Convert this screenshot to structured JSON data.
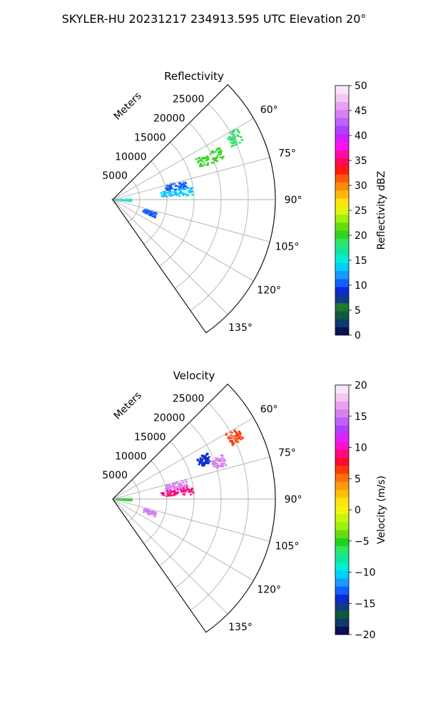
{
  "figure_title": "SKYLER-HU  20231217  234913.595 UTC Elevation 20°",
  "chart_data": [
    {
      "type": "heatmap",
      "projection": "polar-sector",
      "title": "Reflectivity",
      "radial_axis_label": "Meters",
      "radial_ticks": [
        5000,
        10000,
        15000,
        20000,
        25000
      ],
      "radial_tick_labels": [
        "5000",
        "10000",
        "15000",
        "20000",
        "25000"
      ],
      "radial_range": [
        0,
        30000
      ],
      "azimuth_range_deg": [
        45,
        145
      ],
      "azimuth_ticks_deg": [
        60,
        75,
        90,
        105,
        120,
        135
      ],
      "azimuth_tick_labels": [
        "60°",
        "75°",
        "90°",
        "105°",
        "120°",
        "135°"
      ],
      "grid": true,
      "colorbar": {
        "label": "Reflectivity dBZ",
        "range": [
          0,
          50
        ],
        "ticks": [
          0,
          5,
          10,
          15,
          20,
          25,
          30,
          35,
          40,
          45,
          50
        ],
        "tick_labels": [
          "0",
          "5",
          "10",
          "15",
          "20",
          "25",
          "30",
          "35",
          "40",
          "45",
          "50"
        ]
      },
      "echo_clusters": [
        {
          "az_deg": 67,
          "r_m": [
            17000,
            22000
          ],
          "value": 20
        },
        {
          "az_deg": 78,
          "r_m": [
            10000,
            14000
          ],
          "value": 10
        },
        {
          "az_deg": 84,
          "r_m": [
            9000,
            15000
          ],
          "value": 13
        },
        {
          "az_deg": 92,
          "r_m": [
            0,
            3500
          ],
          "value": 15
        },
        {
          "az_deg": 110,
          "r_m": [
            6000,
            8500
          ],
          "value": 10
        },
        {
          "az_deg": 63,
          "r_m": [
            24000,
            26500
          ],
          "value": 18
        }
      ]
    },
    {
      "type": "heatmap",
      "projection": "polar-sector",
      "title": "Velocity",
      "radial_axis_label": "Meters",
      "radial_ticks": [
        5000,
        10000,
        15000,
        20000,
        25000
      ],
      "radial_tick_labels": [
        "5000",
        "10000",
        "15000",
        "20000",
        "25000"
      ],
      "radial_range": [
        0,
        30000
      ],
      "azimuth_range_deg": [
        45,
        145
      ],
      "azimuth_ticks_deg": [
        60,
        75,
        90,
        105,
        120,
        135
      ],
      "azimuth_tick_labels": [
        "60°",
        "75°",
        "90°",
        "105°",
        "120°",
        "135°"
      ],
      "grid": true,
      "colorbar": {
        "label": "Velocity (m/s)",
        "range": [
          -20,
          20
        ],
        "ticks": [
          -20,
          -15,
          -10,
          -5,
          0,
          5,
          10,
          15,
          20
        ],
        "tick_labels": [
          "−20",
          "−15",
          "−10",
          "−5",
          "0",
          "5",
          "10",
          "15",
          "20"
        ]
      },
      "echo_clusters": [
        {
          "az_deg": 67,
          "r_m": [
            17000,
            19500
          ],
          "value": -14
        },
        {
          "az_deg": 71,
          "r_m": [
            19500,
            22000
          ],
          "value": 16
        },
        {
          "az_deg": 78,
          "r_m": [
            10000,
            14000
          ],
          "value": 15
        },
        {
          "az_deg": 84,
          "r_m": [
            9000,
            15000
          ],
          "value": 9
        },
        {
          "az_deg": 92,
          "r_m": [
            0,
            3500
          ],
          "value": -5
        },
        {
          "az_deg": 110,
          "r_m": [
            6000,
            8500
          ],
          "value": 15
        },
        {
          "az_deg": 63,
          "r_m": [
            24000,
            26500
          ],
          "value": 6
        }
      ]
    }
  ]
}
